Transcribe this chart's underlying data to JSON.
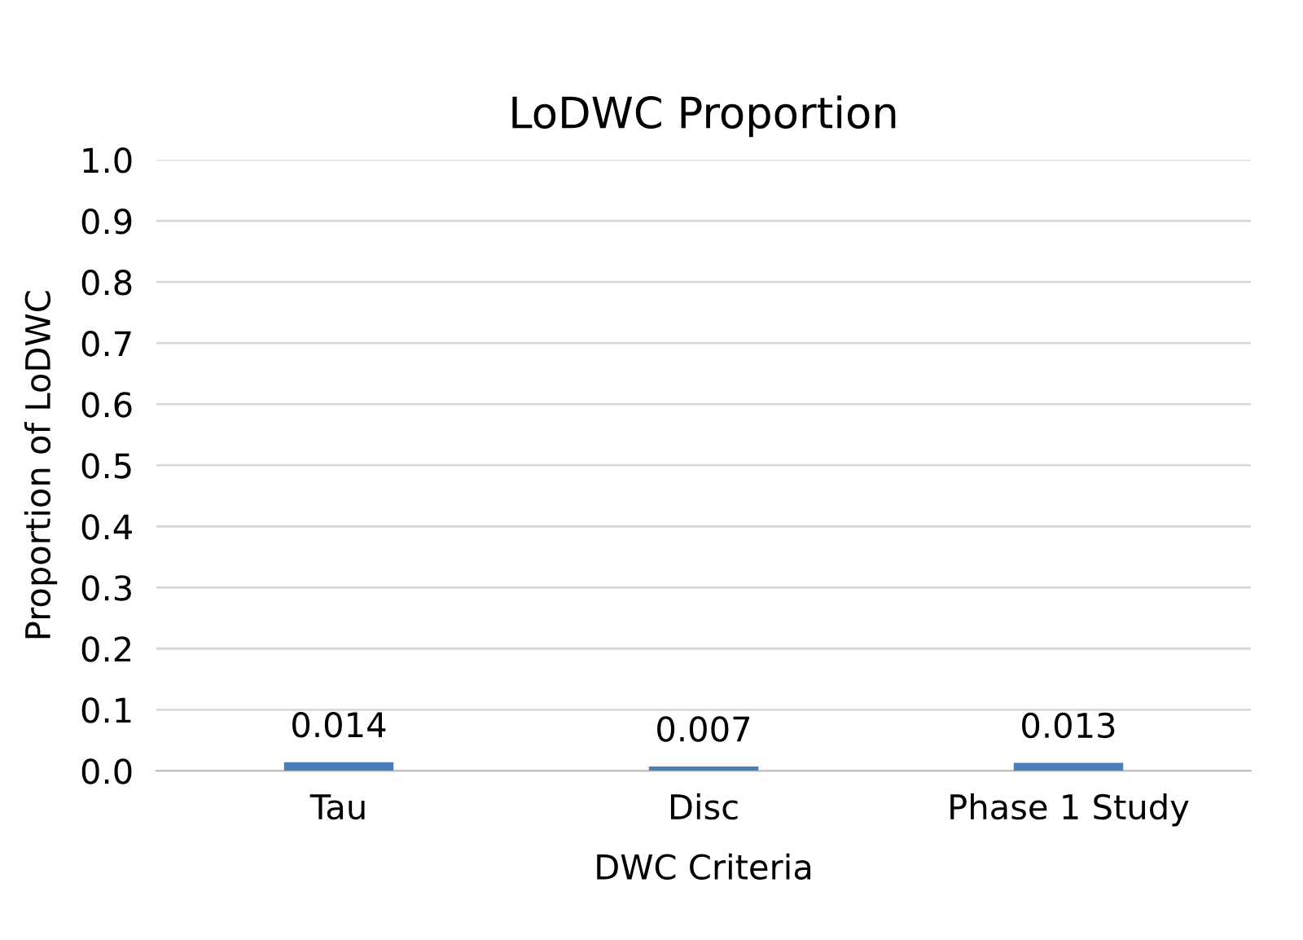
{
  "chart_data": {
    "type": "bar",
    "title": "LoDWC Proportion",
    "xlabel": "DWC Criteria",
    "ylabel": "Proportion of LoDWC",
    "categories": [
      "Tau",
      "Disc",
      "Phase 1 Study"
    ],
    "values": [
      0.014,
      0.007,
      0.013
    ],
    "color": "#4a7ebb",
    "value_labels": [
      "0.014",
      "0.007",
      "0.013"
    ],
    "ylim": [
      0,
      1.0
    ],
    "yticks": [
      {
        "value": 0,
        "label": "0.0"
      },
      {
        "value": 0.1,
        "label": "0.1"
      },
      {
        "value": 0.2,
        "label": "0.2"
      },
      {
        "value": 0.3,
        "label": "0.3"
      },
      {
        "value": 0.4,
        "label": "0.4"
      },
      {
        "value": 0.5,
        "label": "0.5"
      },
      {
        "value": 0.6,
        "label": "0.6"
      },
      {
        "value": 0.7,
        "label": "0.7"
      },
      {
        "value": 0.8,
        "label": "0.8"
      },
      {
        "value": 0.9,
        "label": "0.9"
      },
      {
        "value": 1.0,
        "label": "1.0"
      }
    ],
    "grid": "y"
  }
}
